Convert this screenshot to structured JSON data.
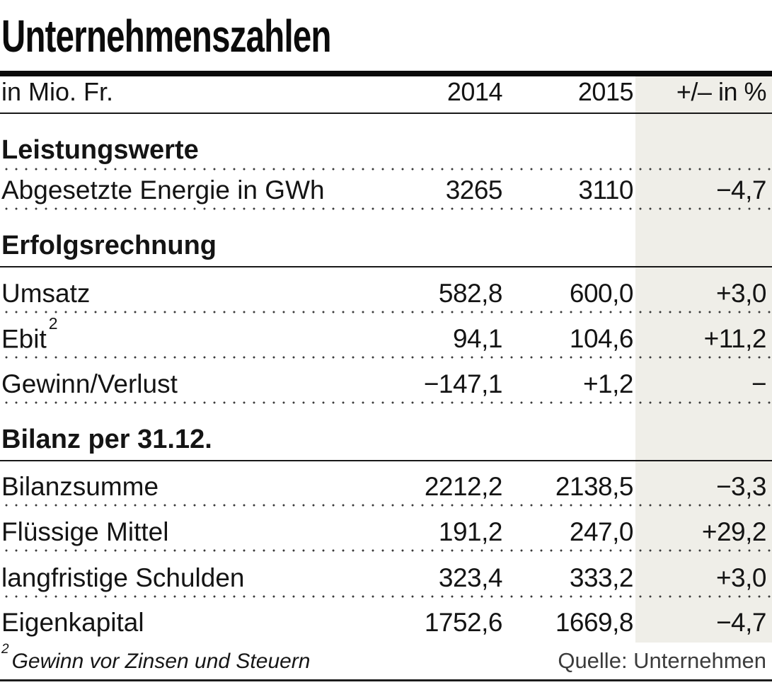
{
  "chart_data": {
    "type": "table",
    "title": "Unternehmenszahlen",
    "header": {
      "unit": "in Mio. Fr.",
      "y2014": "2014",
      "y2015": "2015",
      "pct": "+/– in %"
    },
    "sections": [
      {
        "label": "Leistungswerte",
        "rows": [
          {
            "label": "Abgesetzte Energie in GWh",
            "v2014": "3265",
            "v2015": "3110",
            "pct": "−4,7"
          }
        ]
      },
      {
        "label": "Erfolgsrechnung",
        "rows": [
          {
            "label": "Umsatz",
            "v2014": "582,8",
            "v2015": "600,0",
            "pct": "+3,0"
          },
          {
            "label": "Ebit",
            "label_sup": "2",
            "v2014": "94,1",
            "v2015": "104,6",
            "pct": "+11,2"
          },
          {
            "label": "Gewinn/Verlust",
            "v2014": "−147,1",
            "v2015": "+1,2",
            "pct": "−"
          }
        ]
      },
      {
        "label": "Bilanz per 31.12.",
        "rows": [
          {
            "label": "Bilanzsumme",
            "v2014": "2212,2",
            "v2015": "2138,5",
            "pct": "−3,3"
          },
          {
            "label": "Flüssige Mittel",
            "v2014": "191,2",
            "v2015": "247,0",
            "pct": "+29,2"
          },
          {
            "label": "langfristige Schulden",
            "v2014": "323,4",
            "v2015": "333,2",
            "pct": "+3,0"
          },
          {
            "label": "Eigenkapital",
            "v2014": "1752,6",
            "v2015": "1669,8",
            "pct": "−4,7"
          }
        ]
      }
    ],
    "footnote_sup": "2",
    "footnote_text": "Gewinn vor Zinsen und Steuern",
    "source": "Quelle: Unternehmen"
  },
  "colors": {
    "pct_column_band": "#efeee8",
    "rule": "#0b0b0b",
    "dots": "#3a3a3a",
    "source_text": "#3c3c3c"
  }
}
